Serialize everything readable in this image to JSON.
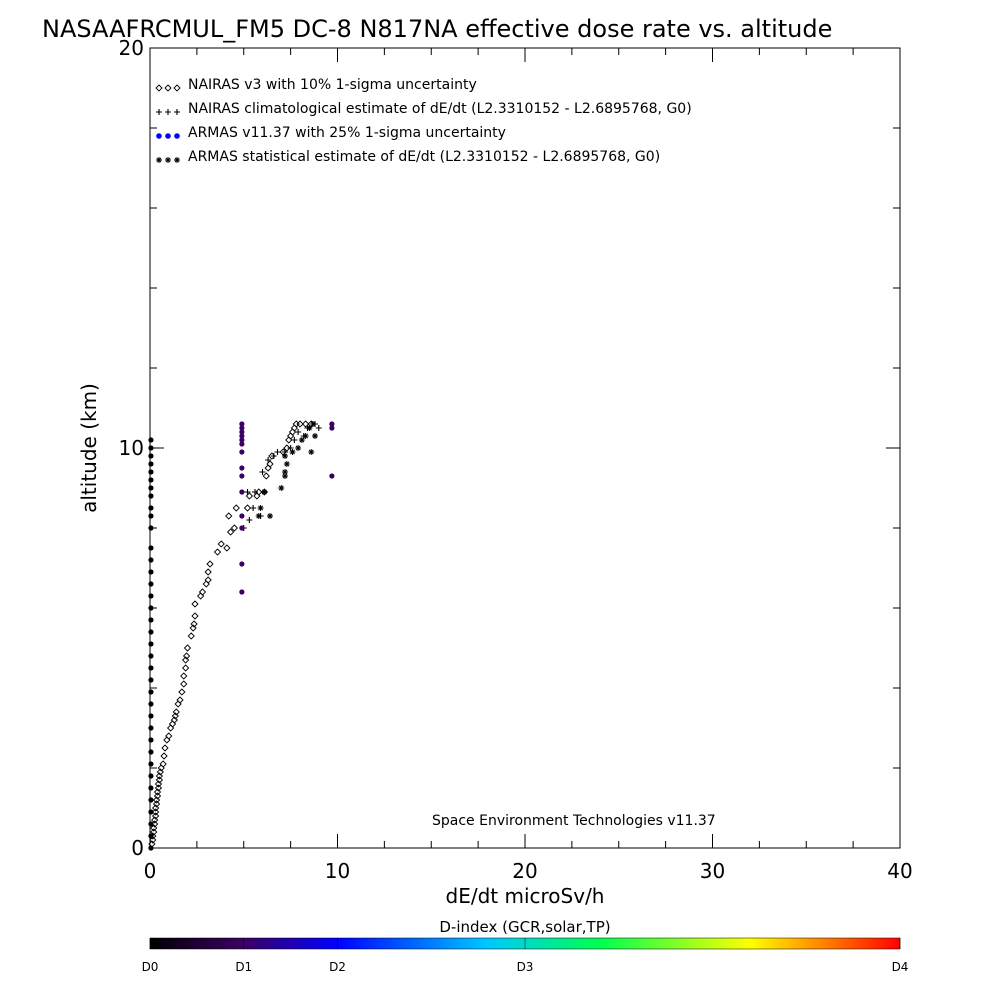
{
  "chart_data": {
    "type": "scatter",
    "title": "NASAAFRCMUL_FM5 DC-8   N817NA effective dose rate vs. altitude",
    "xlabel": "dE/dt microSv/h",
    "ylabel": "altitude (km)",
    "xlim": [
      0,
      40
    ],
    "ylim": [
      0,
      20
    ],
    "x_ticks": [
      0,
      10,
      20,
      30,
      40
    ],
    "y_ticks": [
      0,
      10,
      20
    ],
    "grid": false,
    "legend_position": "top-left",
    "credit": "Space Environment Technologies v11.37",
    "colorbar": {
      "title": "D-index (GCR,solar,TP)",
      "labels": [
        "D0",
        "D1",
        "D2",
        "D3",
        "D4"
      ],
      "label_positions": [
        0,
        0.125,
        0.25,
        0.5,
        1.0
      ],
      "colors": [
        "#000000",
        "#3c0064",
        "#0000ff",
        "#00c8ff",
        "#00ff50",
        "#ffff00",
        "#ff0000"
      ]
    },
    "series": [
      {
        "name": "NAIRAS v3 with 10% 1-sigma uncertainty",
        "marker": "diamond",
        "color": "#000000",
        "points": [
          [
            0.1,
            0.1
          ],
          [
            0.15,
            0.2
          ],
          [
            0.15,
            0.3
          ],
          [
            0.2,
            0.4
          ],
          [
            0.2,
            0.5
          ],
          [
            0.25,
            0.6
          ],
          [
            0.25,
            0.7
          ],
          [
            0.3,
            0.8
          ],
          [
            0.3,
            0.9
          ],
          [
            0.3,
            1.0
          ],
          [
            0.35,
            1.1
          ],
          [
            0.35,
            1.2
          ],
          [
            0.4,
            1.3
          ],
          [
            0.4,
            1.4
          ],
          [
            0.45,
            1.5
          ],
          [
            0.45,
            1.6
          ],
          [
            0.5,
            1.7
          ],
          [
            0.5,
            1.8
          ],
          [
            0.55,
            1.9
          ],
          [
            0.6,
            2.0
          ],
          [
            0.7,
            2.1
          ],
          [
            0.75,
            2.3
          ],
          [
            0.8,
            2.5
          ],
          [
            0.9,
            2.7
          ],
          [
            1.0,
            2.8
          ],
          [
            1.1,
            3.0
          ],
          [
            1.2,
            3.1
          ],
          [
            1.3,
            3.2
          ],
          [
            1.35,
            3.3
          ],
          [
            1.4,
            3.4
          ],
          [
            1.5,
            3.6
          ],
          [
            1.6,
            3.7
          ],
          [
            1.7,
            3.9
          ],
          [
            1.8,
            4.1
          ],
          [
            1.8,
            4.3
          ],
          [
            1.9,
            4.5
          ],
          [
            1.9,
            4.7
          ],
          [
            1.95,
            4.8
          ],
          [
            2.0,
            5.0
          ],
          [
            2.2,
            5.3
          ],
          [
            2.3,
            5.5
          ],
          [
            2.35,
            5.6
          ],
          [
            2.4,
            5.8
          ],
          [
            2.4,
            6.1
          ],
          [
            2.7,
            6.3
          ],
          [
            2.8,
            6.4
          ],
          [
            3.0,
            6.6
          ],
          [
            3.1,
            6.7
          ],
          [
            3.1,
            6.9
          ],
          [
            3.2,
            7.1
          ],
          [
            3.6,
            7.4
          ],
          [
            3.8,
            7.6
          ],
          [
            4.1,
            7.5
          ],
          [
            4.3,
            7.9
          ],
          [
            4.5,
            8.0
          ],
          [
            4.2,
            8.3
          ],
          [
            4.6,
            8.5
          ],
          [
            5.2,
            8.5
          ],
          [
            5.3,
            8.8
          ],
          [
            5.7,
            8.8
          ],
          [
            5.8,
            8.9
          ],
          [
            6.1,
            8.9
          ],
          [
            6.2,
            9.3
          ],
          [
            6.3,
            9.5
          ],
          [
            6.4,
            9.6
          ],
          [
            6.5,
            9.8
          ],
          [
            7.1,
            9.9
          ],
          [
            7.3,
            10.0
          ],
          [
            7.4,
            10.2
          ],
          [
            7.5,
            10.3
          ],
          [
            7.6,
            10.4
          ],
          [
            7.7,
            10.5
          ],
          [
            7.8,
            10.6
          ],
          [
            8.0,
            10.6
          ],
          [
            8.3,
            10.6
          ],
          [
            8.6,
            10.6
          ]
        ]
      },
      {
        "name": "NAIRAS climatological estimate of dE/dt (L2.3310152 - L2.6895768, G0)",
        "marker": "plus",
        "color": "#000000",
        "points": [
          [
            5.0,
            8.0
          ],
          [
            5.3,
            8.2
          ],
          [
            5.5,
            8.5
          ],
          [
            5.9,
            8.3
          ],
          [
            5.2,
            8.9
          ],
          [
            5.6,
            8.9
          ],
          [
            6.0,
            9.4
          ],
          [
            6.3,
            9.7
          ],
          [
            6.6,
            9.8
          ],
          [
            6.8,
            9.9
          ],
          [
            7.2,
            9.9
          ],
          [
            7.5,
            10.0
          ],
          [
            7.7,
            10.2
          ],
          [
            7.9,
            10.4
          ],
          [
            8.2,
            10.3
          ],
          [
            8.4,
            10.5
          ],
          [
            8.8,
            10.6
          ],
          [
            9.0,
            10.5
          ]
        ]
      },
      {
        "name": "ARMAS v11.37 with 25% 1-sigma uncertainty",
        "marker": "dot",
        "color": "#0000ff",
        "legend_color": "#0000ff",
        "points": [
          [
            0.05,
            0.0
          ],
          [
            0.05,
            0.3
          ],
          [
            0.05,
            0.6
          ],
          [
            0.05,
            0.9
          ],
          [
            0.05,
            1.2
          ],
          [
            0.05,
            1.5
          ],
          [
            0.05,
            1.8
          ],
          [
            0.05,
            2.1
          ],
          [
            0.05,
            2.4
          ],
          [
            0.05,
            2.7
          ],
          [
            0.05,
            3.0
          ],
          [
            0.05,
            3.3
          ],
          [
            0.05,
            3.6
          ],
          [
            0.05,
            3.9
          ],
          [
            0.05,
            4.2
          ],
          [
            0.05,
            4.5
          ],
          [
            0.05,
            4.8
          ],
          [
            0.05,
            5.1
          ],
          [
            0.05,
            5.4
          ],
          [
            0.05,
            5.7
          ],
          [
            0.05,
            6.0
          ],
          [
            0.05,
            6.3
          ],
          [
            0.05,
            6.6
          ],
          [
            0.05,
            6.9
          ],
          [
            0.05,
            7.2
          ],
          [
            0.05,
            7.5
          ],
          [
            0.05,
            8.0
          ],
          [
            0.05,
            8.3
          ],
          [
            0.05,
            8.5
          ],
          [
            0.05,
            8.8
          ],
          [
            0.05,
            9.0
          ],
          [
            0.05,
            9.2
          ],
          [
            0.05,
            9.4
          ],
          [
            0.05,
            9.6
          ],
          [
            0.05,
            9.8
          ],
          [
            0.05,
            10.0
          ],
          [
            0.05,
            10.2
          ],
          [
            4.9,
            6.4
          ],
          [
            4.9,
            7.1
          ],
          [
            4.9,
            8.0
          ],
          [
            4.9,
            8.3
          ],
          [
            4.9,
            8.9
          ],
          [
            4.9,
            9.3
          ],
          [
            4.9,
            9.5
          ],
          [
            4.9,
            9.9
          ],
          [
            4.9,
            10.1
          ],
          [
            4.9,
            10.2
          ],
          [
            4.9,
            10.3
          ],
          [
            4.9,
            10.4
          ],
          [
            4.9,
            10.5
          ],
          [
            4.9,
            10.6
          ],
          [
            9.7,
            9.3
          ],
          [
            9.7,
            10.5
          ],
          [
            9.7,
            10.6
          ]
        ]
      },
      {
        "name": "ARMAS statistical estimate of dE/dt (L2.3310152 - L2.6895768, G0)",
        "marker": "asterisk",
        "color": "#000000",
        "points": [
          [
            5.8,
            8.3
          ],
          [
            5.9,
            8.5
          ],
          [
            6.4,
            8.3
          ],
          [
            6.1,
            8.9
          ],
          [
            7.0,
            9.0
          ],
          [
            7.2,
            9.3
          ],
          [
            7.2,
            9.4
          ],
          [
            7.3,
            9.6
          ],
          [
            7.2,
            9.8
          ],
          [
            7.6,
            9.9
          ],
          [
            7.9,
            10.0
          ],
          [
            8.1,
            10.2
          ],
          [
            8.3,
            10.3
          ],
          [
            8.5,
            10.5
          ],
          [
            8.7,
            10.6
          ],
          [
            8.8,
            10.3
          ],
          [
            8.6,
            9.9
          ]
        ]
      }
    ]
  }
}
